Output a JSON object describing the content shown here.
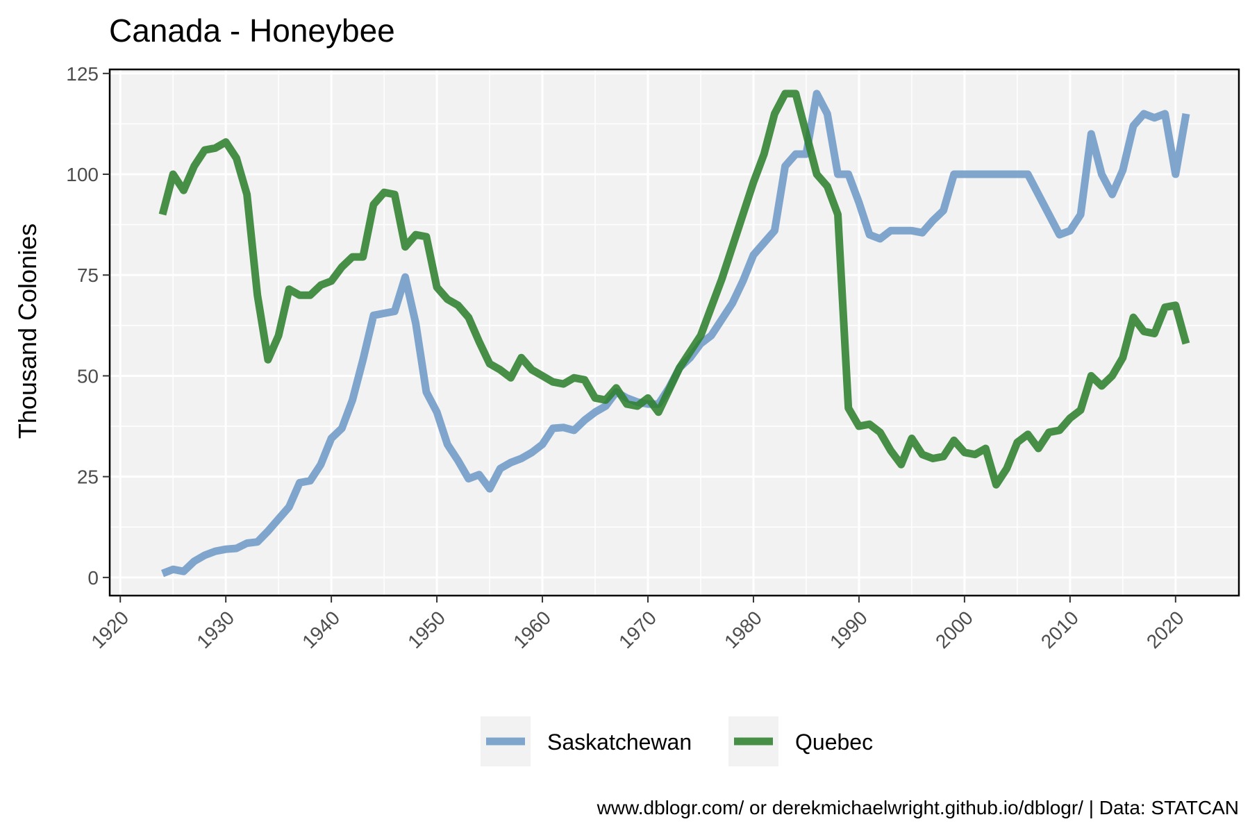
{
  "chart_data": {
    "type": "line",
    "title": "Canada - Honeybee",
    "xlabel": "",
    "ylabel": "Thousand Colonies",
    "xlim": [
      1919,
      2026
    ],
    "ylim": [
      -4.5,
      126
    ],
    "x_ticks": [
      1920,
      1930,
      1940,
      1950,
      1960,
      1970,
      1980,
      1990,
      2000,
      2010,
      2020
    ],
    "y_ticks": [
      0,
      25,
      50,
      75,
      100,
      125
    ],
    "grid": true,
    "legend_position": "bottom",
    "caption": "www.dblogr.com/ or derekmichaelwright.github.io/dblogr/ | Data: STATCAN",
    "series": [
      {
        "name": "Saskatchewan",
        "color": "#6e9ac6",
        "x": [
          1924,
          1925,
          1926,
          1927,
          1928,
          1929,
          1930,
          1931,
          1932,
          1933,
          1934,
          1935,
          1936,
          1937,
          1938,
          1939,
          1940,
          1941,
          1942,
          1943,
          1944,
          1945,
          1946,
          1947,
          1948,
          1949,
          1950,
          1951,
          1952,
          1953,
          1954,
          1955,
          1956,
          1957,
          1958,
          1959,
          1960,
          1961,
          1962,
          1963,
          1964,
          1965,
          1966,
          1967,
          1968,
          1969,
          1970,
          1971,
          1972,
          1973,
          1974,
          1975,
          1976,
          1977,
          1978,
          1979,
          1980,
          1981,
          1982,
          1983,
          1984,
          1985,
          1986,
          1987,
          1988,
          1989,
          1990,
          1991,
          1992,
          1993,
          1994,
          1995,
          1996,
          1997,
          1998,
          1999,
          2000,
          2001,
          2002,
          2003,
          2004,
          2005,
          2006,
          2007,
          2008,
          2009,
          2010,
          2011,
          2012,
          2013,
          2014,
          2015,
          2016,
          2017,
          2018,
          2019,
          2020,
          2021
        ],
        "y": [
          1,
          2,
          1.5,
          4,
          5.5,
          6.5,
          7,
          7.2,
          8.5,
          8.8,
          11.5,
          14.5,
          17.5,
          23.5,
          24,
          28,
          34.5,
          37,
          44,
          54,
          65,
          65.5,
          66,
          74.5,
          63,
          46,
          41,
          33,
          29,
          24.5,
          25.5,
          22,
          27,
          28.5,
          29.5,
          31,
          33,
          37,
          37.2,
          36.5,
          39,
          41,
          42.5,
          46,
          44.5,
          43.5,
          43,
          43,
          47,
          52,
          54.5,
          58,
          60,
          64,
          68,
          73.5,
          80,
          83,
          86,
          102,
          105,
          105,
          120,
          115,
          100,
          100,
          93,
          85,
          84,
          86,
          86,
          86,
          85.5,
          88.5,
          91,
          100,
          100,
          100,
          100,
          100,
          100,
          100,
          100,
          95,
          90,
          85,
          86,
          90,
          110,
          100,
          95,
          101,
          112,
          115,
          114,
          115,
          100,
          115
        ]
      },
      {
        "name": "Quebec",
        "color": "#2f7f2f",
        "x": [
          1924,
          1925,
          1926,
          1927,
          1928,
          1929,
          1930,
          1931,
          1932,
          1933,
          1934,
          1935,
          1936,
          1937,
          1938,
          1939,
          1940,
          1941,
          1942,
          1943,
          1944,
          1945,
          1946,
          1947,
          1948,
          1949,
          1950,
          1951,
          1952,
          1953,
          1954,
          1955,
          1956,
          1957,
          1958,
          1959,
          1960,
          1961,
          1962,
          1963,
          1964,
          1965,
          1966,
          1967,
          1968,
          1969,
          1970,
          1971,
          1972,
          1973,
          1974,
          1975,
          1976,
          1977,
          1978,
          1979,
          1980,
          1981,
          1982,
          1983,
          1984,
          1985,
          1986,
          1987,
          1988,
          1989,
          1990,
          1991,
          1992,
          1993,
          1994,
          1995,
          1996,
          1997,
          1998,
          1999,
          2000,
          2001,
          2002,
          2003,
          2004,
          2005,
          2006,
          2007,
          2008,
          2009,
          2010,
          2011,
          2012,
          2013,
          2014,
          2015,
          2016,
          2017,
          2018,
          2019,
          2020,
          2021
        ],
        "y": [
          90,
          100,
          96,
          102,
          106,
          106.5,
          108,
          104,
          95,
          70,
          54,
          60,
          71.5,
          70,
          70,
          72.5,
          73.5,
          77,
          79.5,
          79.5,
          92.5,
          95.5,
          95,
          82,
          85,
          84.5,
          72,
          69,
          67.5,
          64.5,
          58.5,
          53,
          51.5,
          49.5,
          54.5,
          51.5,
          50,
          48.5,
          48,
          49.5,
          49,
          44.5,
          44,
          47,
          43,
          42.5,
          44.5,
          41,
          46.5,
          52,
          56,
          60,
          67,
          74,
          82,
          90,
          98,
          105,
          115,
          120,
          120,
          110,
          100,
          97,
          90,
          42,
          37.5,
          38,
          36,
          31.5,
          28,
          34.5,
          30.5,
          29.5,
          30,
          34,
          31,
          30.5,
          32,
          23,
          27,
          33.5,
          35.5,
          32,
          36,
          36.5,
          39.5,
          41.5,
          50,
          47.5,
          50,
          54.5,
          64.5,
          61,
          60.5,
          67,
          67.5,
          58
        ]
      }
    ]
  }
}
